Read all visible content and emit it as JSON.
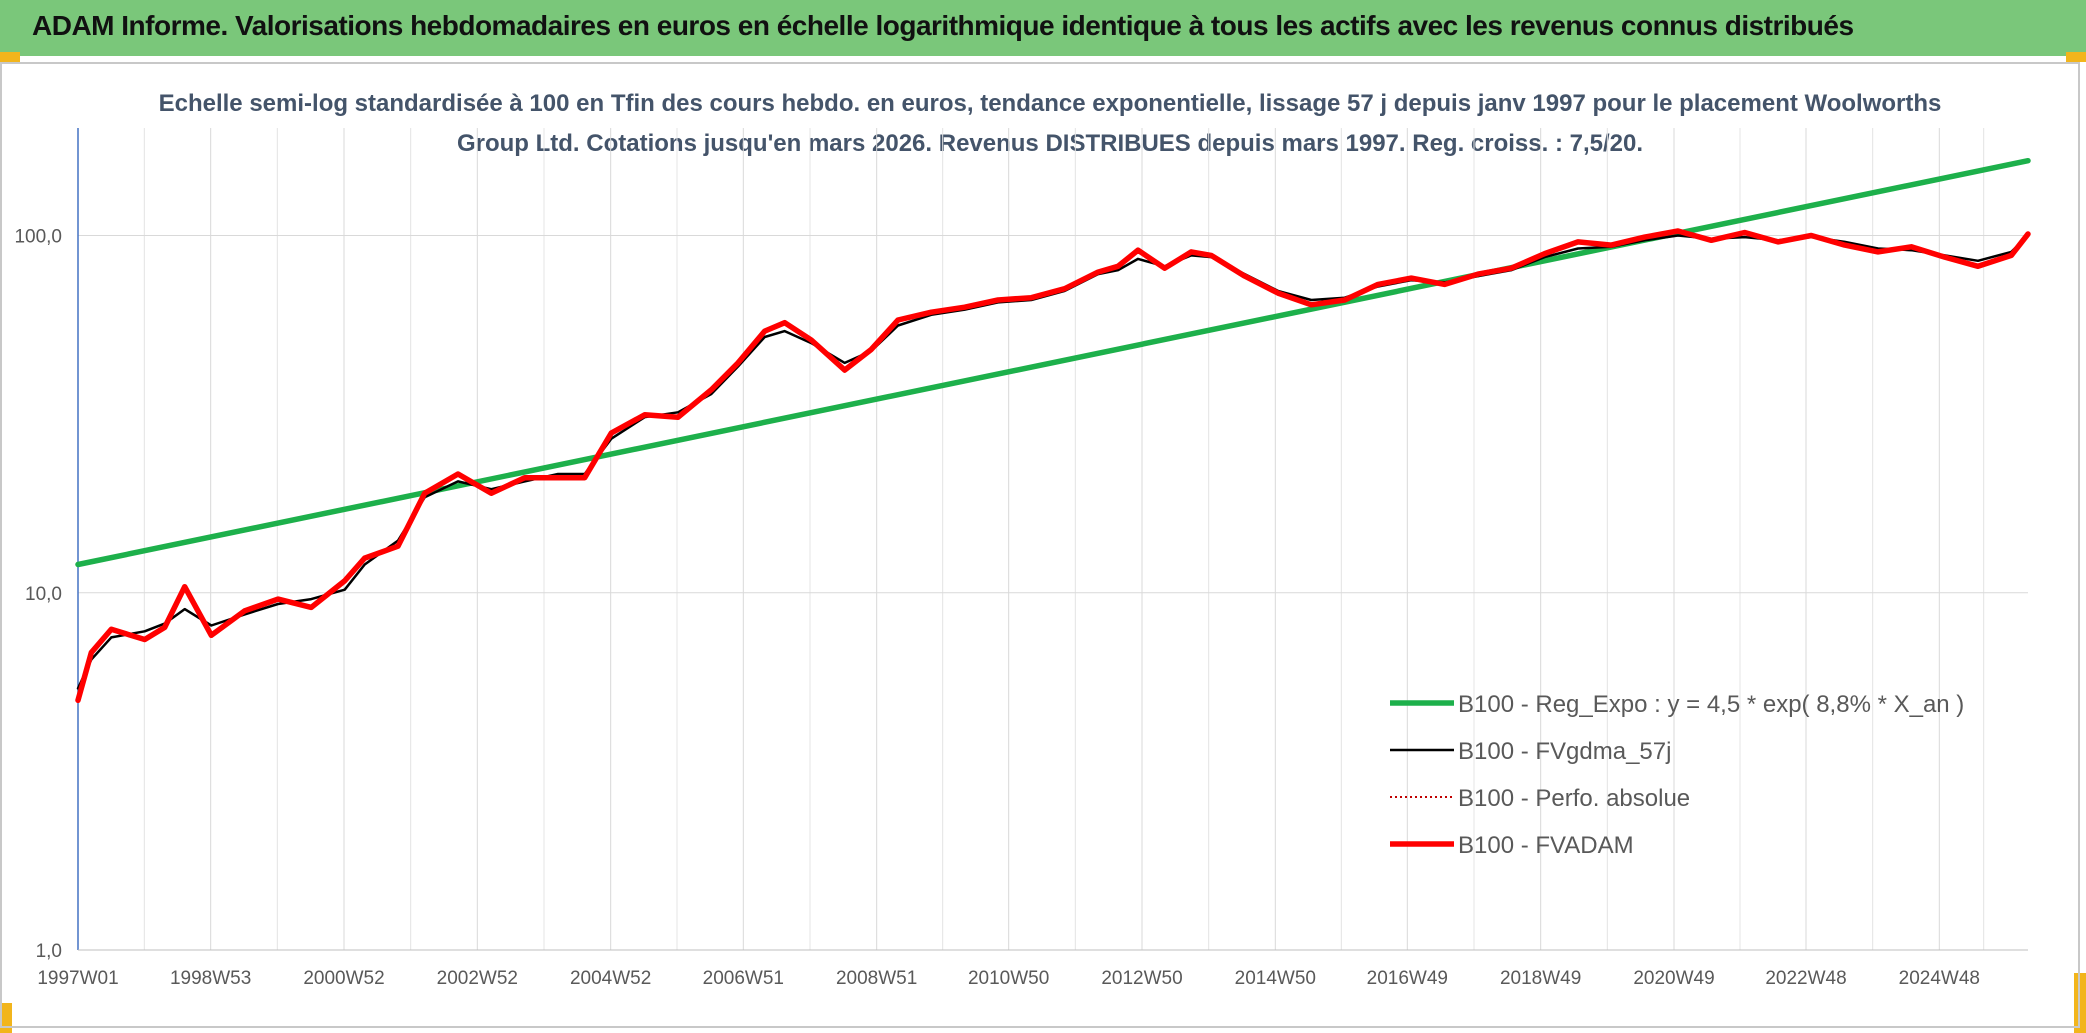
{
  "header": {
    "title": "ADAM Informe. Valorisations hebdomadaires en euros en échelle logarithmique identique à tous les actifs avec les revenus connus distribués"
  },
  "chart_data": {
    "type": "line",
    "title": "Echelle semi-log standardisée à 100 en Tfin des cours hebdo. en euros, tendance exponentielle, lissage 57 j depuis janv 1997 pour le placement Woolworths Group Ltd. Cotations jusqu'en mars 2026. Revenus DISTRIBUES depuis mars 1997. Reg. croiss. : 7,5/20.",
    "y_scale": "log",
    "ylim": [
      1,
      200
    ],
    "xlim": [
      1997.0,
      2026.25
    ],
    "grid": true,
    "legend_position": "right",
    "y_ticks": [
      {
        "value": 1,
        "label": "1,0"
      },
      {
        "value": 10,
        "label": "10,0"
      },
      {
        "value": 100,
        "label": "100,0"
      }
    ],
    "x_ticks": [
      {
        "value": 1997.0,
        "label": "1997W01"
      },
      {
        "value": 1998.99,
        "label": "1998W53"
      },
      {
        "value": 2000.99,
        "label": "2000W52"
      },
      {
        "value": 2002.99,
        "label": "2002W52"
      },
      {
        "value": 2004.99,
        "label": "2004W52"
      },
      {
        "value": 2006.98,
        "label": "2006W51"
      },
      {
        "value": 2008.98,
        "label": "2008W51"
      },
      {
        "value": 2010.96,
        "label": "2010W50"
      },
      {
        "value": 2012.96,
        "label": "2012W50"
      },
      {
        "value": 2014.96,
        "label": "2014W50"
      },
      {
        "value": 2016.94,
        "label": "2016W49"
      },
      {
        "value": 2018.94,
        "label": "2018W49"
      },
      {
        "value": 2020.94,
        "label": "2020W49"
      },
      {
        "value": 2022.92,
        "label": "2022W48"
      },
      {
        "value": 2024.92,
        "label": "2024W48"
      }
    ],
    "series": [
      {
        "name": "B100 - Reg_Expo : y = 4,5 * exp( 8,8% *  X_an )",
        "color": "#1db04b",
        "style": "thick",
        "x": [
          1997.0,
          2026.25
        ],
        "y": [
          12.0,
          162.0
        ]
      },
      {
        "name": "B100 - FVgdma_57j",
        "color": "#000000",
        "style": "thin",
        "x": [
          1997.0,
          1997.2,
          1997.5,
          1998.0,
          1998.3,
          1998.6,
          1999.0,
          1999.5,
          2000.0,
          2000.5,
          2001.0,
          2001.3,
          2001.8,
          2002.2,
          2002.7,
          2003.2,
          2003.7,
          2004.2,
          2004.6,
          2005.0,
          2005.5,
          2006.0,
          2006.5,
          2006.9,
          2007.3,
          2007.6,
          2008.0,
          2008.5,
          2008.9,
          2009.3,
          2009.8,
          2010.3,
          2010.8,
          2011.3,
          2011.8,
          2012.3,
          2012.6,
          2012.9,
          2013.3,
          2013.7,
          2014.0,
          2014.5,
          2015.0,
          2015.5,
          2016.0,
          2016.5,
          2017.0,
          2017.5,
          2018.0,
          2018.5,
          2019.0,
          2019.5,
          2020.0,
          2020.5,
          2021.0,
          2021.5,
          2022.0,
          2022.5,
          2023.0,
          2023.5,
          2024.0,
          2024.5,
          2025.0,
          2025.5,
          2026.0,
          2026.25
        ],
        "y": [
          5.4,
          6.5,
          7.5,
          7.8,
          8.2,
          9.0,
          8.1,
          8.7,
          9.3,
          9.6,
          10.2,
          12.0,
          14.0,
          18.5,
          20.5,
          19.5,
          20.5,
          21.5,
          21.5,
          27.0,
          31.0,
          32.0,
          36.0,
          43.0,
          52.0,
          54.0,
          50.0,
          44.0,
          47.5,
          56.0,
          60.0,
          62.0,
          65.0,
          66.0,
          70.0,
          78.0,
          80.0,
          86.0,
          82.0,
          88.0,
          87.0,
          78.0,
          70.0,
          66.0,
          67.0,
          72.0,
          75.0,
          74.0,
          77.0,
          80.0,
          87.0,
          92.0,
          93.0,
          97.0,
          100.0,
          98.0,
          99.0,
          97.0,
          99.0,
          96.0,
          92.0,
          91.0,
          88.0,
          85.0,
          90.0,
          100.0
        ]
      },
      {
        "name": "B100 - Perfo. absolue",
        "color": "#c00000",
        "style": "dotted",
        "x": [],
        "y": []
      },
      {
        "name": "B100 - FVADAM",
        "color": "#ff0000",
        "style": "thick",
        "x": [
          1997.0,
          1997.2,
          1997.5,
          1998.0,
          1998.3,
          1998.6,
          1999.0,
          1999.5,
          2000.0,
          2000.5,
          2001.0,
          2001.3,
          2001.8,
          2002.2,
          2002.7,
          2003.2,
          2003.7,
          2004.2,
          2004.6,
          2005.0,
          2005.5,
          2006.0,
          2006.5,
          2006.9,
          2007.3,
          2007.6,
          2008.0,
          2008.5,
          2008.9,
          2009.3,
          2009.8,
          2010.3,
          2010.8,
          2011.3,
          2011.8,
          2012.3,
          2012.6,
          2012.9,
          2013.3,
          2013.7,
          2014.0,
          2014.5,
          2015.0,
          2015.5,
          2016.0,
          2016.5,
          2017.0,
          2017.5,
          2018.0,
          2018.5,
          2019.0,
          2019.5,
          2020.0,
          2020.5,
          2021.0,
          2021.5,
          2022.0,
          2022.5,
          2023.0,
          2023.5,
          2024.0,
          2024.5,
          2025.0,
          2025.5,
          2026.0,
          2026.25
        ],
        "y": [
          5.0,
          6.8,
          7.9,
          7.4,
          8.0,
          10.4,
          7.6,
          8.9,
          9.6,
          9.1,
          10.8,
          12.5,
          13.5,
          19.0,
          21.5,
          19.0,
          21.0,
          21.0,
          21.0,
          28.0,
          31.5,
          31.0,
          37.0,
          44.0,
          54.0,
          57.0,
          51.0,
          42.0,
          48.0,
          58.0,
          61.0,
          63.0,
          66.0,
          67.0,
          71.0,
          79.0,
          82.0,
          91.0,
          81.0,
          90.0,
          88.0,
          77.0,
          69.0,
          64.0,
          66.0,
          73.0,
          76.0,
          73.0,
          78.0,
          81.0,
          89.0,
          96.0,
          94.0,
          99.0,
          103.0,
          97.0,
          102.0,
          96.0,
          100.0,
          94.0,
          90.0,
          93.0,
          87.0,
          82.0,
          88.0,
          101.0
        ]
      }
    ]
  }
}
